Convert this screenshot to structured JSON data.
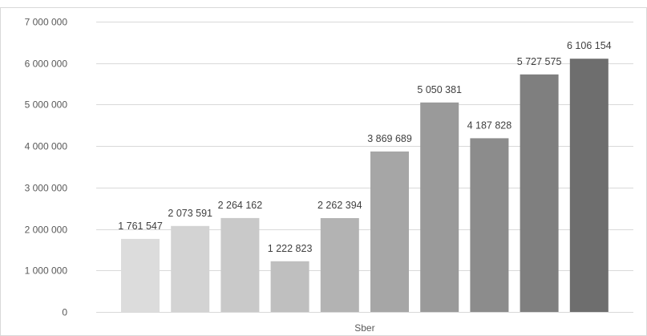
{
  "chart_data": {
    "type": "bar",
    "categories": [
      "Sber"
    ],
    "series": [
      {
        "values": [
          1761547
        ],
        "color": "#dcdcdc"
      },
      {
        "values": [
          2073591
        ],
        "color": "#d3d3d3"
      },
      {
        "values": [
          2264162
        ],
        "color": "#c9c9c9"
      },
      {
        "values": [
          1222823
        ],
        "color": "#bfbfbf"
      },
      {
        "values": [
          2262394
        ],
        "color": "#b3b3b3"
      },
      {
        "values": [
          3869689
        ],
        "color": "#a6a6a6"
      },
      {
        "values": [
          5050381
        ],
        "color": "#9a9a9a"
      },
      {
        "values": [
          4187828
        ],
        "color": "#8c8c8c"
      },
      {
        "values": [
          5727575
        ],
        "color": "#7f7f7f"
      },
      {
        "values": [
          6106154
        ],
        "color": "#6e6e6e"
      }
    ],
    "data_labels": [
      "1 761 547",
      "2 073 591",
      "2 264 162",
      "1 222 823",
      "2 262 394",
      "3 869 689",
      "5 050 381",
      "4 187 828",
      "5 727 575",
      "6 106 154"
    ],
    "yticks": [
      0,
      1000000,
      2000000,
      3000000,
      4000000,
      5000000,
      6000000,
      7000000
    ],
    "ytick_labels": [
      "0",
      "1 000 000",
      "2 000 000",
      "3 000 000",
      "4 000 000",
      "5 000 000",
      "6 000 000",
      "7 000 000"
    ],
    "ylim": [
      0,
      7000000
    ],
    "title": "",
    "xlabel": "",
    "ylabel": "",
    "grid": true,
    "legend": "none"
  }
}
